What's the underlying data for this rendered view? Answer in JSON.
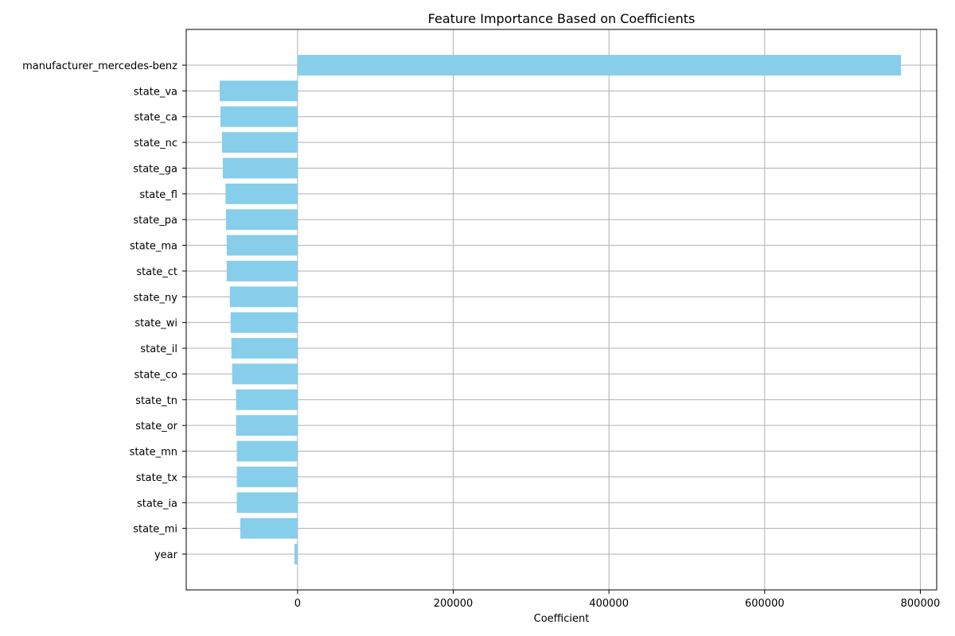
{
  "chart_data": {
    "type": "bar",
    "orientation": "horizontal",
    "title": "Feature Importance Based on Coefficients",
    "xlabel": "Coefficient",
    "ylabel": "",
    "categories": [
      "manufacturer_mercedes-benz",
      "state_va",
      "state_ca",
      "state_nc",
      "state_ga",
      "state_fl",
      "state_pa",
      "state_ma",
      "state_ct",
      "state_ny",
      "state_wi",
      "state_il",
      "state_co",
      "state_tn",
      "state_or",
      "state_mn",
      "state_tx",
      "state_ia",
      "state_mi",
      "year"
    ],
    "values": [
      775000,
      -100000,
      -99000,
      -97000,
      -96000,
      -92500,
      -92000,
      -91000,
      -91000,
      -87000,
      -86000,
      -85000,
      -84000,
      -79000,
      -79000,
      -78000,
      -78000,
      -78000,
      -73500,
      -4000
    ],
    "xlim": [
      -143000,
      821000
    ],
    "xticks": [
      0,
      200000,
      400000,
      600000,
      800000
    ],
    "xtick_labels": [
      "0",
      "200000",
      "400000",
      "600000",
      "800000"
    ],
    "grid": true,
    "bar_color": "#87ceeb",
    "grid_color": "#b0b0b0"
  }
}
